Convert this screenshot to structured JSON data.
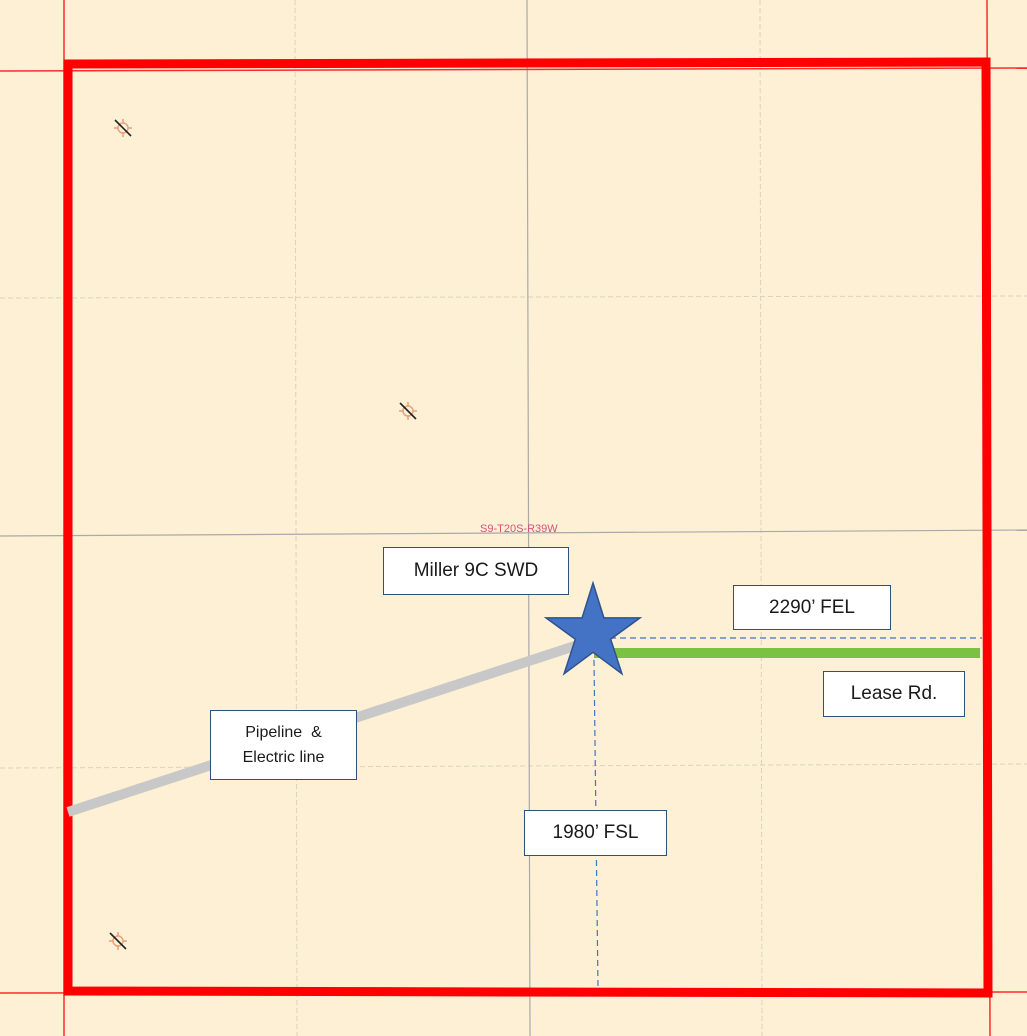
{
  "map": {
    "section_label": "S9-T20S-R39W",
    "colors": {
      "background": "#fdf0d5",
      "section_boundary": "#ff0000",
      "grid_line": "#b7b7b7",
      "pipeline": "#c8c8c8",
      "lease_road": "#7cc242",
      "well_star": "#4472c4",
      "dimension_line": "#4472c4"
    }
  },
  "labels": {
    "well_name": "Miller 9C SWD",
    "fel_distance": "2290’ FEL",
    "lease_road": "Lease Rd.",
    "fsl_distance": "1980’ FSL",
    "pipeline_line1": "Pipeline  &",
    "pipeline_line2": "Electric line"
  },
  "symbols": {
    "existing_wells": [
      "plugged-well-icon",
      "plugged-well-icon",
      "plugged-well-icon"
    ],
    "proposed_well": "star-icon"
  }
}
